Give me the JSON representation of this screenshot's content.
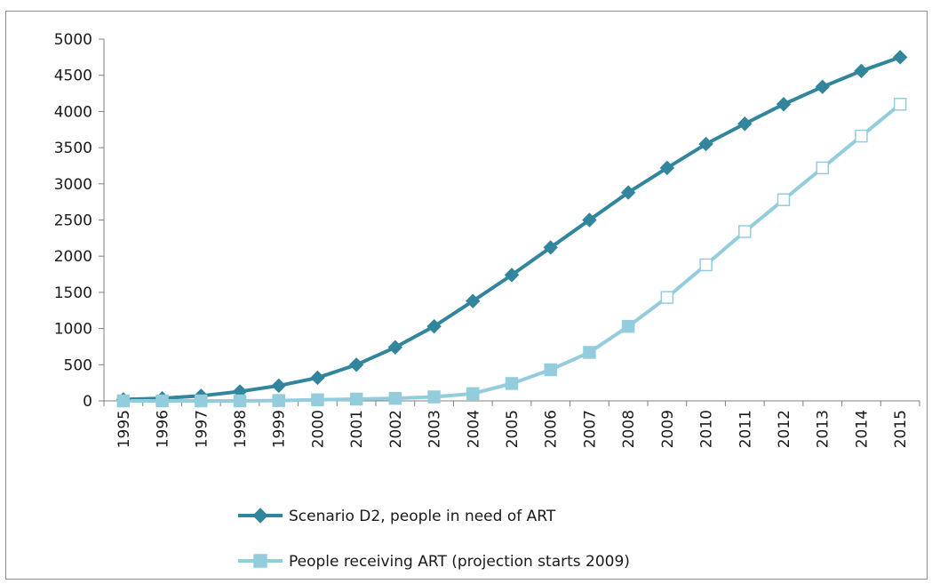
{
  "chart_data": {
    "type": "line",
    "title": "",
    "xlabel": "",
    "ylabel": "",
    "categories": [
      "1995",
      "1996",
      "1997",
      "1998",
      "1999",
      "2000",
      "2001",
      "2002",
      "2003",
      "2004",
      "2005",
      "2006",
      "2007",
      "2008",
      "2009",
      "2010",
      "2011",
      "2012",
      "2013",
      "2014",
      "2015"
    ],
    "ylim": [
      0,
      5000
    ],
    "yticks": [
      0,
      500,
      1000,
      1500,
      2000,
      2500,
      3000,
      3500,
      4000,
      4500,
      5000
    ],
    "grid": false,
    "legend_position": "bottom",
    "series": [
      {
        "name": "Scenario D2, people in need of ART",
        "color": "#31859C",
        "marker": "diamond",
        "values": [
          20,
          35,
          70,
          130,
          210,
          320,
          500,
          740,
          1030,
          1380,
          1740,
          2120,
          2500,
          2880,
          3220,
          3550,
          3830,
          4100,
          4340,
          4560,
          4750
        ]
      },
      {
        "name": "People receiving ART (projection starts 2009)",
        "color": "#93CDDD",
        "marker": "square",
        "values": [
          0,
          0,
          0,
          0,
          5,
          15,
          25,
          35,
          55,
          100,
          240,
          430,
          670,
          1030,
          1430,
          1880,
          2340,
          2780,
          3220,
          3660,
          4100
        ],
        "hollow_from_index": 14
      }
    ]
  }
}
